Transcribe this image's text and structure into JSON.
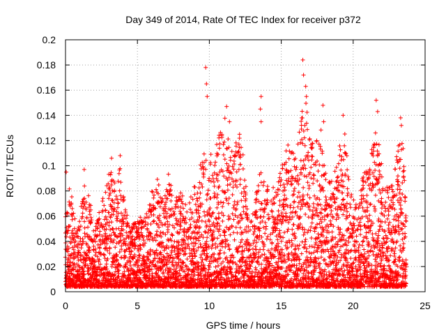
{
  "chart_data": {
    "type": "scatter",
    "title": "Day 349 of 2014, Rate Of TEC Index for receiver p372",
    "xlabel": "GPS time / hours",
    "ylabel": "ROTI / TECUs",
    "xlim": [
      0,
      25
    ],
    "ylim": [
      0,
      0.2
    ],
    "xticks": [
      0,
      5,
      10,
      15,
      20,
      25
    ],
    "yticks": [
      0,
      0.02,
      0.04,
      0.06,
      0.08,
      0.1,
      0.12,
      0.14,
      0.16,
      0.18,
      0.2
    ],
    "grid": true,
    "marker": "plus",
    "series": [
      {
        "name": "ROTI",
        "color": "#ff0000",
        "envelope": {
          "x": [
            0,
            0.3,
            0.5,
            0.8,
            1.0,
            1.3,
            1.6,
            2.0,
            2.4,
            2.8,
            3.1,
            3.5,
            3.8,
            4.1,
            4.5,
            5.0,
            5.5,
            6.0,
            6.4,
            6.8,
            7.1,
            7.5,
            8.0,
            8.4,
            8.8,
            9.2,
            9.6,
            9.9,
            10.3,
            10.7,
            11.1,
            11.5,
            11.9,
            12.3,
            12.6,
            13.0,
            13.4,
            13.8,
            14.3,
            14.8,
            15.2,
            15.6,
            16.0,
            16.4,
            16.7,
            17.0,
            17.4,
            17.8,
            18.2,
            18.6,
            19.0,
            19.4,
            19.8,
            20.2,
            20.6,
            21.0,
            21.4,
            21.8,
            22.2,
            22.6,
            23.0,
            23.4,
            23.7
          ],
          "y": [
            0.06,
            0.09,
            0.07,
            0.05,
            0.06,
            0.09,
            0.08,
            0.05,
            0.07,
            0.08,
            0.105,
            0.085,
            0.1,
            0.07,
            0.05,
            0.06,
            0.06,
            0.08,
            0.09,
            0.07,
            0.1,
            0.08,
            0.08,
            0.07,
            0.08,
            0.09,
            0.12,
            0.1,
            0.12,
            0.13,
            0.14,
            0.11,
            0.13,
            0.12,
            0.08,
            0.06,
            0.1,
            0.09,
            0.08,
            0.09,
            0.11,
            0.12,
            0.11,
            0.14,
            0.16,
            0.12,
            0.12,
            0.13,
            0.09,
            0.09,
            0.12,
            0.13,
            0.08,
            0.07,
            0.09,
            0.1,
            0.13,
            0.12,
            0.09,
            0.09,
            0.11,
            0.13,
            0.07
          ]
        },
        "spikes": [
          {
            "x": 0.05,
            "y": 0.095
          },
          {
            "x": 1.3,
            "y": 0.097
          },
          {
            "x": 3.2,
            "y": 0.106
          },
          {
            "x": 3.8,
            "y": 0.108
          },
          {
            "x": 9.75,
            "y": 0.178
          },
          {
            "x": 9.8,
            "y": 0.165
          },
          {
            "x": 9.85,
            "y": 0.155
          },
          {
            "x": 11.2,
            "y": 0.147
          },
          {
            "x": 11.4,
            "y": 0.135
          },
          {
            "x": 12.1,
            "y": 0.125
          },
          {
            "x": 13.6,
            "y": 0.155
          },
          {
            "x": 13.55,
            "y": 0.145
          },
          {
            "x": 13.6,
            "y": 0.135
          },
          {
            "x": 16.5,
            "y": 0.184
          },
          {
            "x": 16.55,
            "y": 0.172
          },
          {
            "x": 16.7,
            "y": 0.163
          },
          {
            "x": 16.75,
            "y": 0.155
          },
          {
            "x": 17.9,
            "y": 0.148
          },
          {
            "x": 17.95,
            "y": 0.135
          },
          {
            "x": 19.3,
            "y": 0.14
          },
          {
            "x": 21.6,
            "y": 0.152
          },
          {
            "x": 21.7,
            "y": 0.143
          },
          {
            "x": 23.3,
            "y": 0.138
          },
          {
            "x": 23.35,
            "y": 0.132
          },
          {
            "x": 23.3,
            "y": 0.105
          }
        ]
      }
    ]
  }
}
